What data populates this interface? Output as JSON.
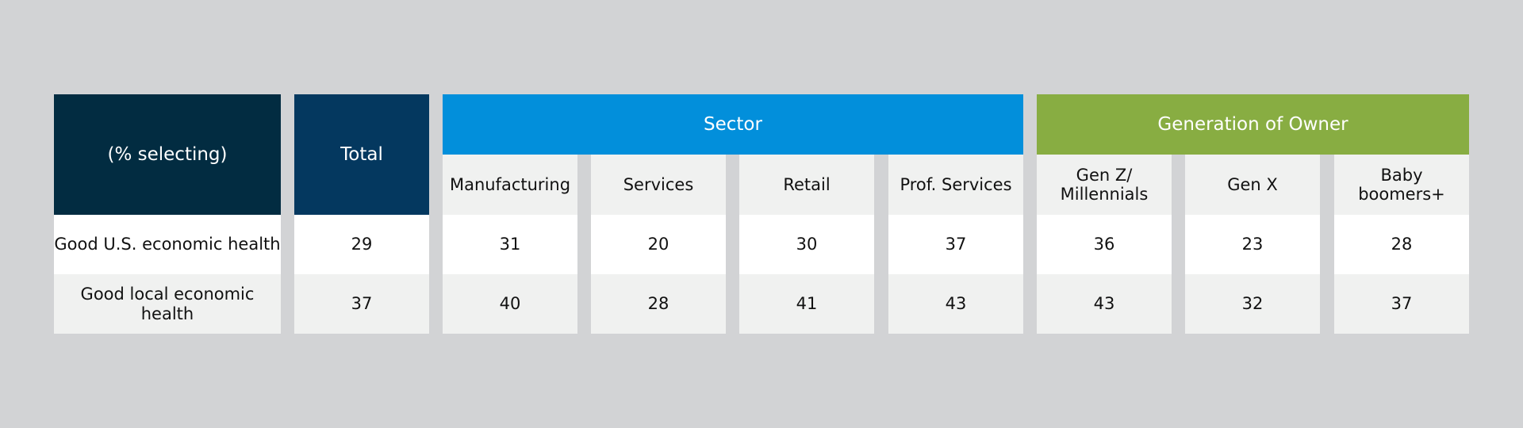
{
  "chart_data": {
    "type": "table",
    "corner_label": "(% selecting)",
    "total_label": "Total",
    "groups": [
      {
        "name": "Sector",
        "color": "#028fdb",
        "columns": [
          "Manufacturing",
          "Services",
          "Retail",
          "Prof. Services"
        ]
      },
      {
        "name": "Generation of Owner",
        "color": "#88ad42",
        "columns": [
          "Gen Z/\nMillennials",
          "Gen X",
          "Baby\nboomers+"
        ]
      }
    ],
    "rows": [
      {
        "label": "Good U.S. economic health",
        "total": 29,
        "values": [
          31,
          20,
          30,
          37,
          36,
          23,
          28
        ]
      },
      {
        "label": "Good local economic health",
        "total": 37,
        "values": [
          40,
          28,
          41,
          43,
          43,
          32,
          37
        ]
      }
    ]
  }
}
